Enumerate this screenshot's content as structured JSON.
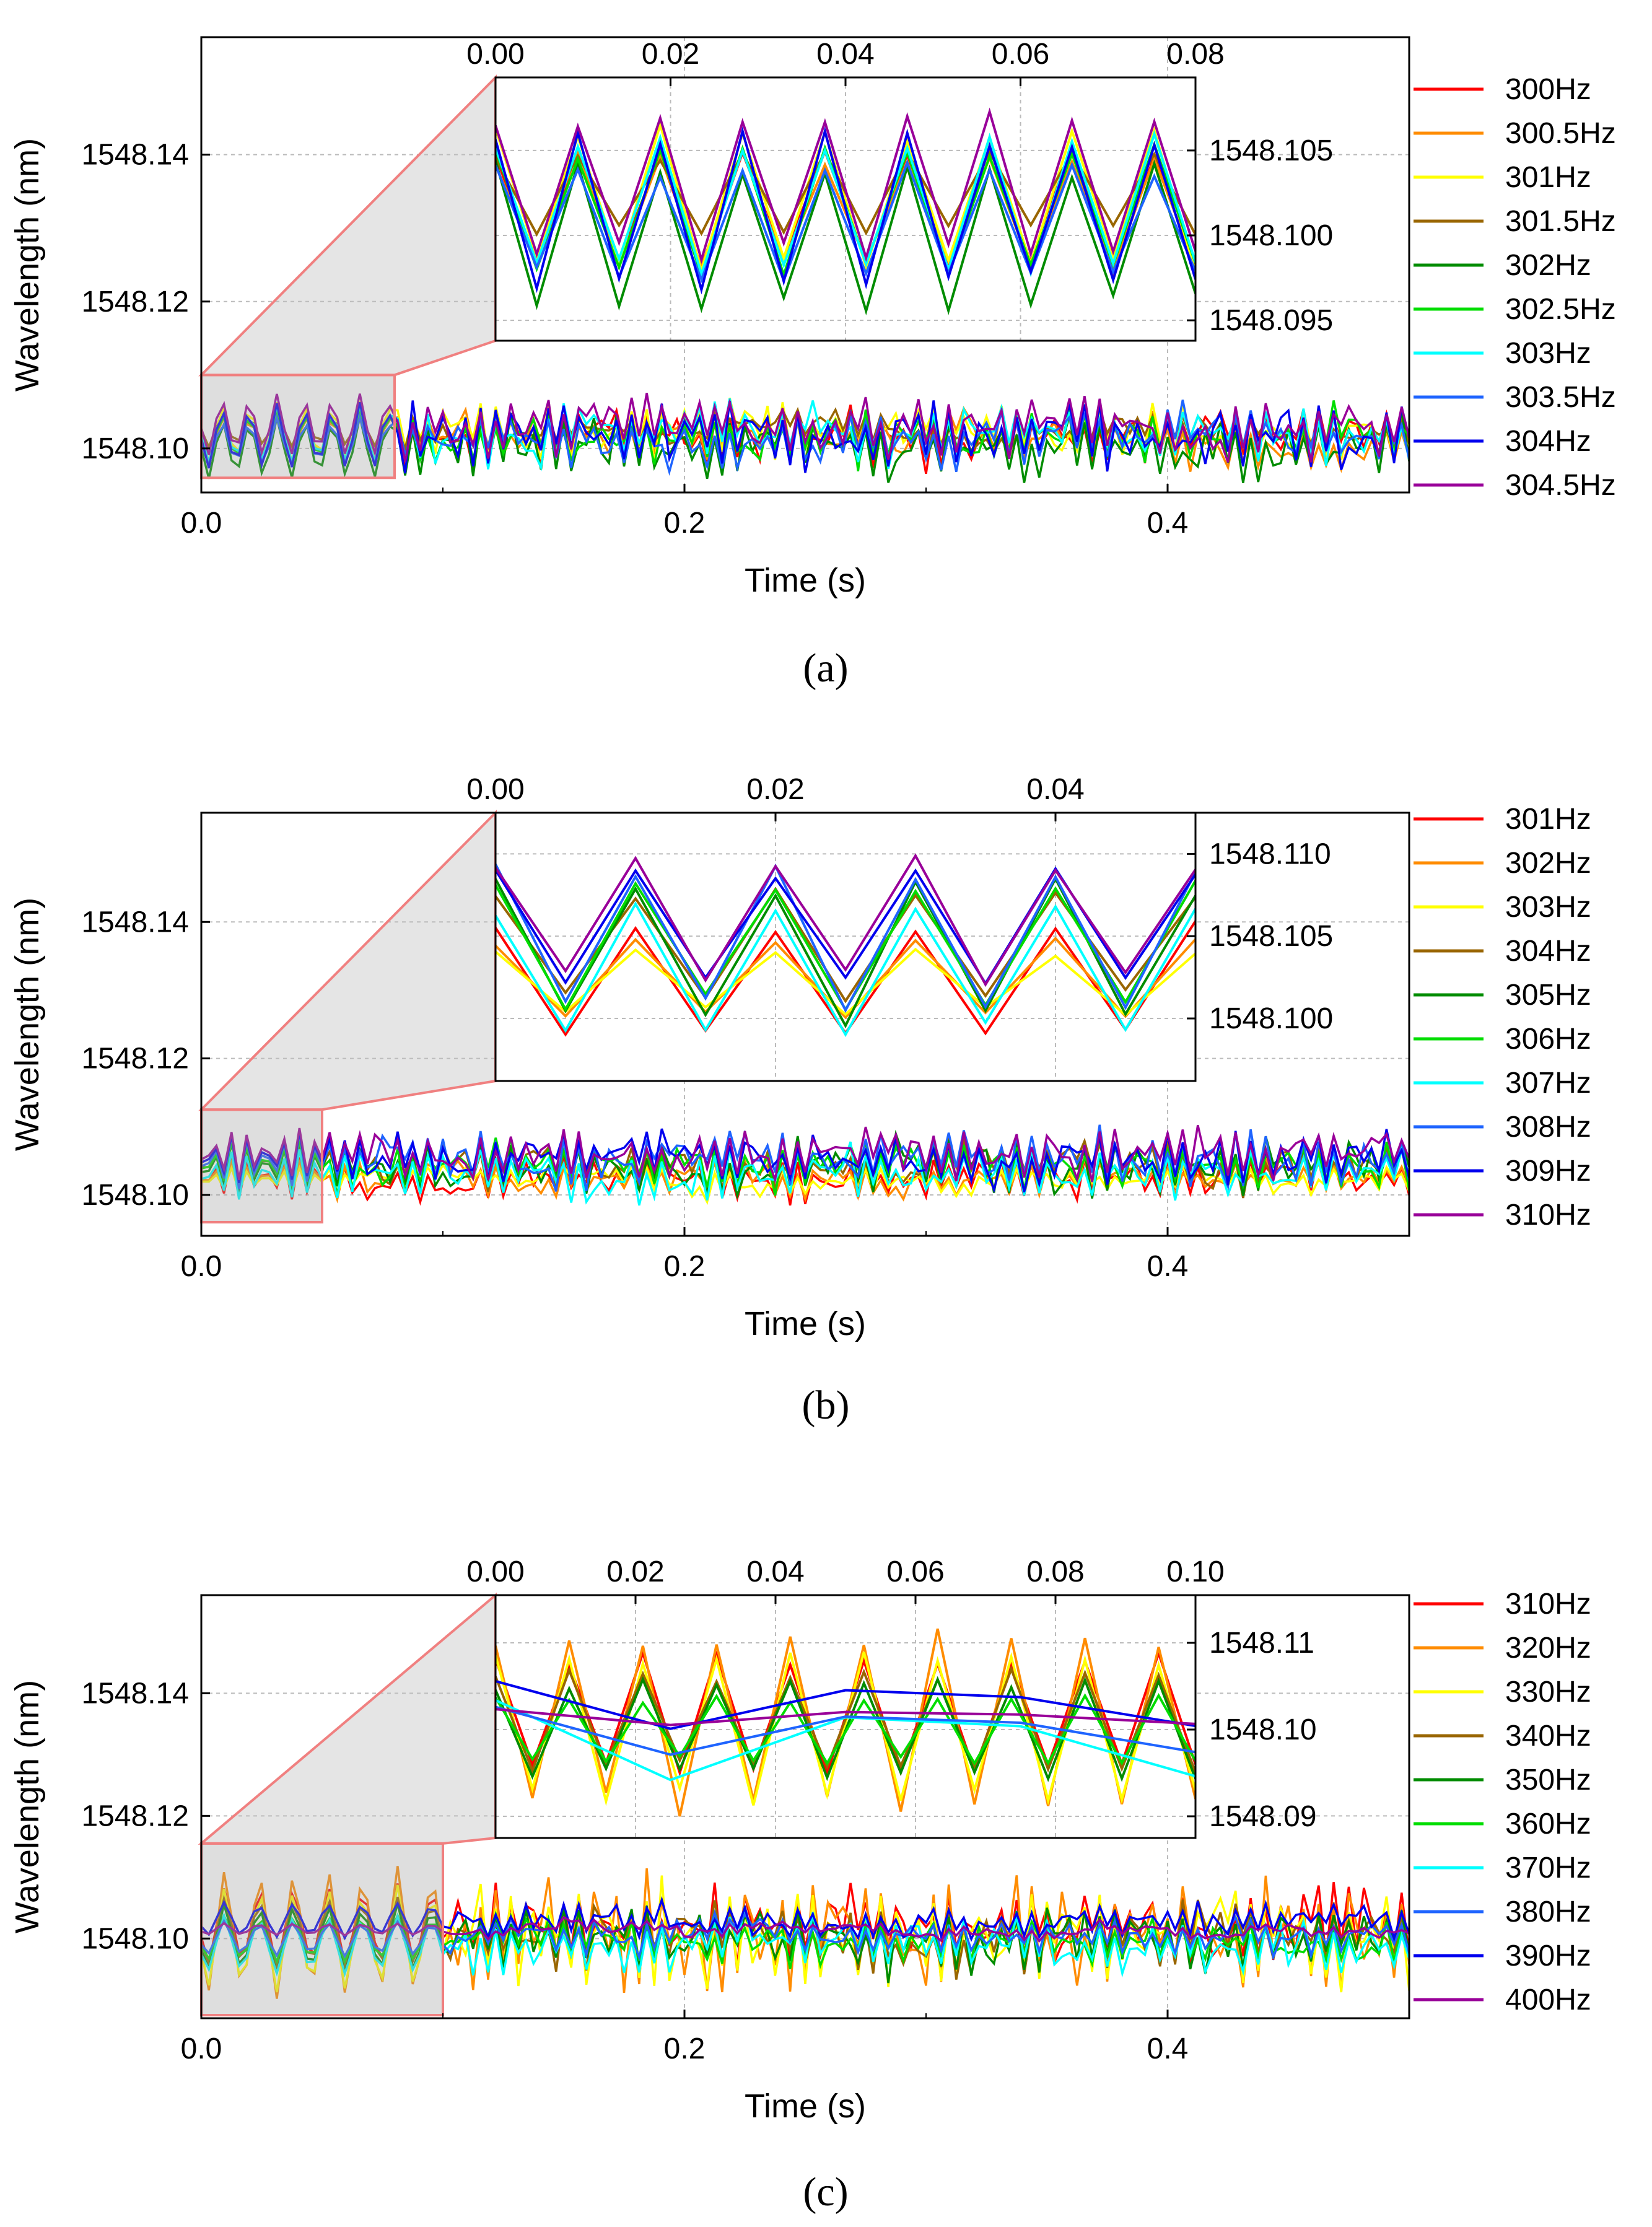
{
  "chart_data": [
    {
      "type": "line",
      "panel_label": "(a)",
      "xlabel": "Time (s)",
      "ylabel": "Wavelength (nm)",
      "xlim": [
        0,
        0.5
      ],
      "ylim": [
        1548.094,
        1548.156
      ],
      "xticks": [
        "0.0",
        "0.2",
        "0.4"
      ],
      "yticks": [
        "1548.10",
        "1548.12",
        "1548.14"
      ],
      "inset": {
        "xlim": [
          0,
          0.08
        ],
        "ylim": [
          1548.0938,
          1548.1093
        ],
        "xticks": [
          "0.00",
          "0.02",
          "0.04",
          "0.06",
          "0.08"
        ],
        "yticks": [
          "1548.095",
          "1548.100",
          "1548.105"
        ],
        "zoom_region": {
          "x": [
            0,
            0.08
          ],
          "y": [
            1548.096,
            1548.11
          ]
        }
      },
      "series": [
        {
          "name": "300Hz",
          "color": "#ff0000",
          "center": 1548.1015,
          "amp": 0.0038,
          "freq": 300
        },
        {
          "name": "300.5Hz",
          "color": "#ff8c00",
          "center": 1548.1015,
          "amp": 0.0035,
          "freq": 300.5
        },
        {
          "name": "301Hz",
          "color": "#ffff00",
          "center": 1548.1022,
          "amp": 0.0045,
          "freq": 301
        },
        {
          "name": "301.5Hz",
          "color": "#996600",
          "center": 1548.1025,
          "amp": 0.0025,
          "freq": 301.5
        },
        {
          "name": "302Hz",
          "color": "#008c00",
          "center": 1548.1,
          "amp": 0.0045,
          "freq": 302
        },
        {
          "name": "302.5Hz",
          "color": "#00dd00",
          "center": 1548.1015,
          "amp": 0.004,
          "freq": 302.5
        },
        {
          "name": "303Hz",
          "color": "#00ffff",
          "center": 1548.1018,
          "amp": 0.0042,
          "freq": 303
        },
        {
          "name": "303.5Hz",
          "color": "#1e64ff",
          "center": 1548.1008,
          "amp": 0.0035,
          "freq": 303.5
        },
        {
          "name": "304Hz",
          "color": "#0000ee",
          "center": 1548.1015,
          "amp": 0.0048,
          "freq": 304
        },
        {
          "name": "304.5Hz",
          "color": "#990099",
          "center": 1548.103,
          "amp": 0.0045,
          "freq": 304.5
        }
      ]
    },
    {
      "type": "line",
      "panel_label": "(b)",
      "xlabel": "Time (s)",
      "ylabel": "Wavelength (nm)",
      "xlim": [
        0,
        0.5
      ],
      "ylim": [
        1548.094,
        1548.156
      ],
      "xticks": [
        "0.0",
        "0.2",
        "0.4"
      ],
      "yticks": [
        "1548.10",
        "1548.12",
        "1548.14"
      ],
      "inset": {
        "xlim": [
          0,
          0.05
        ],
        "ylim": [
          1548.0962,
          1548.1125
        ],
        "xticks": [
          "0.00",
          "0.02",
          "0.04"
        ],
        "yticks": [
          "1548.100",
          "1548.105",
          "1548.110"
        ],
        "zoom_region": {
          "x": [
            0,
            0.05
          ],
          "y": [
            1548.096,
            1548.1125
          ]
        }
      },
      "series": [
        {
          "name": "301Hz",
          "color": "#ff0000",
          "center": 1548.1025,
          "amp": 0.0035,
          "freq": 301
        },
        {
          "name": "302Hz",
          "color": "#ff8c00",
          "center": 1548.1025,
          "amp": 0.0025,
          "freq": 302
        },
        {
          "name": "303Hz",
          "color": "#ffff00",
          "center": 1548.1022,
          "amp": 0.002,
          "freq": 303
        },
        {
          "name": "304Hz",
          "color": "#996600",
          "center": 1548.1045,
          "amp": 0.0035,
          "freq": 304
        },
        {
          "name": "305Hz",
          "color": "#008c00",
          "center": 1548.104,
          "amp": 0.0045,
          "freq": 305
        },
        {
          "name": "306Hz",
          "color": "#00dd00",
          "center": 1548.1045,
          "amp": 0.004,
          "freq": 306
        },
        {
          "name": "307Hz",
          "color": "#00ffff",
          "center": 1548.103,
          "amp": 0.004,
          "freq": 307
        },
        {
          "name": "308Hz",
          "color": "#1e64ff",
          "center": 1548.105,
          "amp": 0.0045,
          "freq": 308
        },
        {
          "name": "309Hz",
          "color": "#0000ee",
          "center": 1548.1055,
          "amp": 0.004,
          "freq": 309
        },
        {
          "name": "310Hz",
          "color": "#990099",
          "center": 1548.106,
          "amp": 0.004,
          "freq": 310
        }
      ]
    },
    {
      "type": "line",
      "panel_label": "(c)",
      "xlabel": "Time (s)",
      "ylabel": "Wavelength (nm)",
      "xlim": [
        0,
        0.5
      ],
      "ylim": [
        1548.087,
        1548.156
      ],
      "xticks": [
        "0.0",
        "0.2",
        "0.4"
      ],
      "yticks": [
        "1548.10",
        "1548.12",
        "1548.14"
      ],
      "inset": {
        "xlim": [
          0,
          0.1
        ],
        "ylim": [
          1548.0875,
          1548.1155
        ],
        "xticks": [
          "0.00",
          "0.02",
          "0.04",
          "0.06",
          "0.08",
          "0.10"
        ],
        "yticks": [
          "1548.09",
          "1548.10",
          "1548.11"
        ],
        "zoom_region": {
          "x": [
            0,
            0.1
          ],
          "y": [
            1548.0875,
            1548.1155
          ]
        }
      },
      "series": [
        {
          "name": "310Hz",
          "color": "#ff0000",
          "center": 1548.102,
          "amp": 0.007,
          "freq": 310
        },
        {
          "name": "320Hz",
          "color": "#ff8c00",
          "center": 1548.101,
          "amp": 0.011,
          "freq": 320
        },
        {
          "name": "330Hz",
          "color": "#ffff00",
          "center": 1548.1,
          "amp": 0.009,
          "freq": 330
        },
        {
          "name": "340Hz",
          "color": "#996600",
          "center": 1548.101,
          "amp": 0.006,
          "freq": 340
        },
        {
          "name": "350Hz",
          "color": "#008c00",
          "center": 1548.1,
          "amp": 0.006,
          "freq": 350
        },
        {
          "name": "360Hz",
          "color": "#00dd00",
          "center": 1548.1,
          "amp": 0.004,
          "freq": 360
        },
        {
          "name": "370Hz",
          "color": "#00ffff",
          "center": 1548.099,
          "amp": 0.005,
          "freq": 370
        },
        {
          "name": "380Hz",
          "color": "#1e64ff",
          "center": 1548.1,
          "amp": 0.003,
          "freq": 380
        },
        {
          "name": "390Hz",
          "color": "#0000ee",
          "center": 1548.103,
          "amp": 0.003,
          "freq": 390
        },
        {
          "name": "400Hz",
          "color": "#990099",
          "center": 1548.1015,
          "amp": 0.001,
          "freq": 400
        }
      ]
    }
  ]
}
